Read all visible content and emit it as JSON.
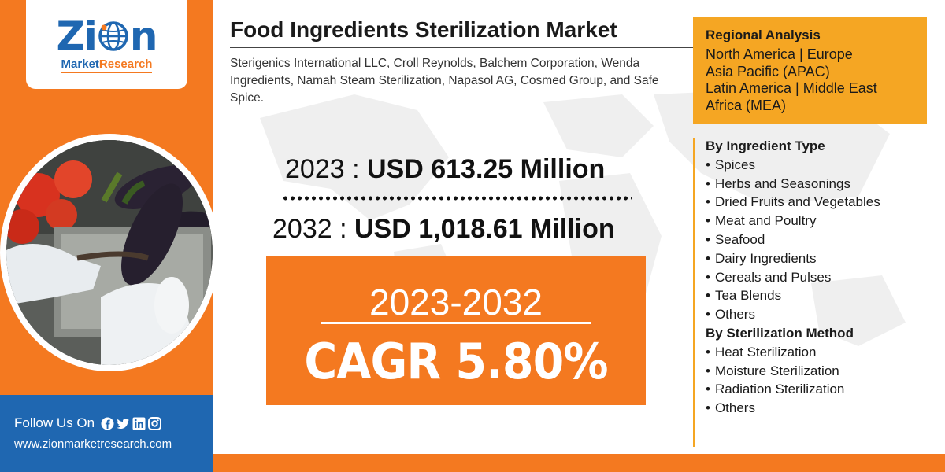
{
  "brand": {
    "logo_word_left": "Zi",
    "logo_word_right": "n",
    "logo_sub_main": "Market",
    "logo_sub_accent": "Research",
    "primary_color": "#1f67b1",
    "accent_color": "#f47920"
  },
  "title": "Food Ingredients Sterilization Market",
  "companies": "Sterigenics International LLC, Croll Reynolds, Balchem Corporation, Wenda Ingredients, Namah Steam Sterilization, Napasol AG, Cosmed Group, and Safe Spice.",
  "values": {
    "y2023_label": "2023 : ",
    "y2023_amount": "USD 613.25 Million",
    "y2032_label": "2032 : ",
    "y2032_amount": "USD 1,018.61 Million"
  },
  "cagr": {
    "period": "2023-2032",
    "value": "CAGR 5.80%"
  },
  "regional": {
    "title": "Regional Analysis",
    "lines": [
      "North America | Europe",
      "Asia Pacific (APAC)",
      "Latin America | Middle East",
      "Africa (MEA)"
    ]
  },
  "segments": {
    "ingredient_title": "By Ingredient Type",
    "ingredient_items": [
      "Spices",
      "Herbs and Seasonings",
      "Dried Fruits and Vegetables",
      "Meat and Poultry",
      "Seafood",
      "Dairy Ingredients",
      "Cereals and Pulses",
      "Tea Blends",
      "Others"
    ],
    "method_title": "By Sterilization Method",
    "method_items": [
      "Heat Sterilization",
      "Moisture Sterilization",
      "Radiation Sterilization",
      "Others"
    ]
  },
  "footer": {
    "follow_label": "Follow Us On",
    "social_icons": [
      "facebook-icon",
      "twitter-icon",
      "linkedin-icon",
      "instagram-icon"
    ],
    "url": "www.zionmarketresearch.com"
  }
}
